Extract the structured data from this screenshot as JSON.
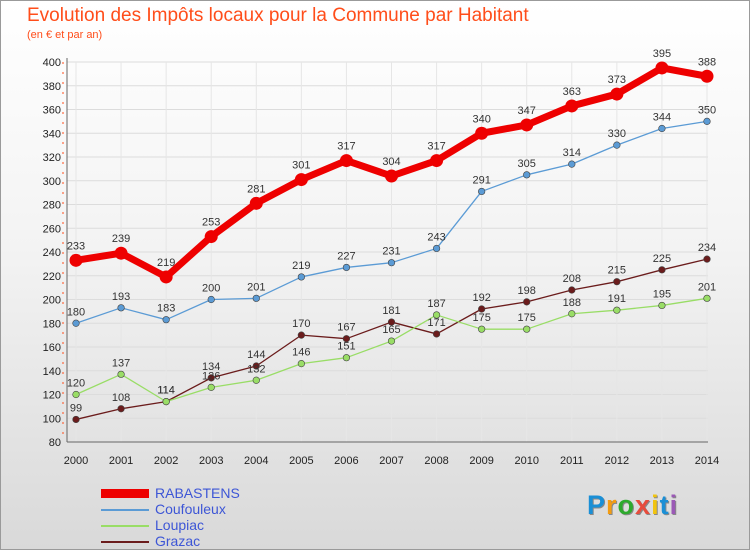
{
  "title": "Evolution des Impôts locaux pour la Commune par Habitant",
  "subtitle": "(en € et par an)",
  "logo": "Proxiti",
  "chart_data": {
    "type": "line",
    "title": "Evolution des Impôts locaux pour la Commune par Habitant",
    "subtitle": "(en € et par an)",
    "xlabel": "",
    "ylabel": "",
    "x": [
      2000,
      2001,
      2002,
      2003,
      2004,
      2005,
      2006,
      2007,
      2008,
      2009,
      2010,
      2011,
      2012,
      2013,
      2014
    ],
    "ylim": [
      80,
      400
    ],
    "yticks": [
      80,
      100,
      120,
      140,
      160,
      180,
      200,
      220,
      240,
      260,
      280,
      300,
      320,
      340,
      360,
      380,
      400
    ],
    "grid": true,
    "legend_position": "bottom-left",
    "series": [
      {
        "name": "RABASTENS",
        "color": "#ee0000",
        "values": [
          233,
          239,
          219,
          253,
          281,
          301,
          317,
          304,
          317,
          340,
          347,
          363,
          373,
          395,
          388
        ]
      },
      {
        "name": "Coufouleux",
        "color": "#5b9bd5",
        "values": [
          180,
          193,
          183,
          200,
          201,
          219,
          227,
          231,
          243,
          291,
          305,
          314,
          330,
          344,
          350
        ]
      },
      {
        "name": "Loupiac",
        "color": "#99dd66",
        "values": [
          120,
          137,
          114,
          126,
          132,
          146,
          151,
          165,
          187,
          175,
          175,
          188,
          191,
          195,
          201
        ]
      },
      {
        "name": "Grazac",
        "color": "#6b1c1c",
        "values": [
          99,
          108,
          114,
          134,
          144,
          170,
          167,
          181,
          171,
          192,
          198,
          208,
          215,
          225,
          234
        ]
      }
    ]
  }
}
